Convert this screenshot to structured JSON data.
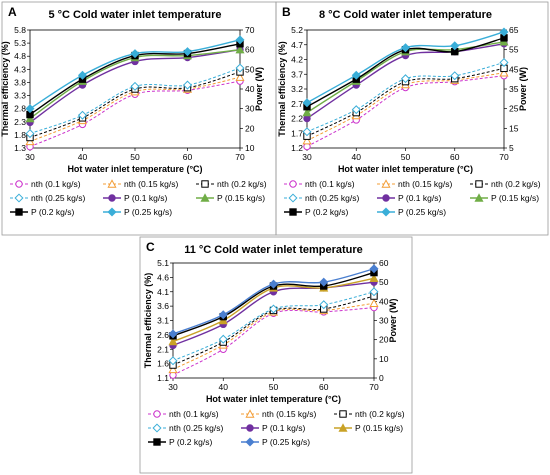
{
  "chart_data": [
    {
      "type": "line",
      "panel_label": "A",
      "title": "5 °C Cold water inlet temperature",
      "xlabel": "Hot water inlet temperature (°C)",
      "ylabel": "Thermal efficiency (%)",
      "y2label": "Power (W)",
      "x": [
        30,
        40,
        50,
        60,
        70
      ],
      "ylim": [
        1.3,
        5.8
      ],
      "yticks": [
        "1.3",
        "1.8",
        "2.3",
        "2.8",
        "3.3",
        "3.8",
        "4.3",
        "4.8",
        "5.3",
        "5.8"
      ],
      "y2lim": [
        10,
        70
      ],
      "y2ticks": [
        "10",
        "20",
        "30",
        "40",
        "50",
        "60",
        "70"
      ],
      "xticks": [
        "30",
        "40",
        "50",
        "60",
        "70"
      ],
      "grid": false,
      "legend_position": "bottom",
      "series": [
        {
          "name": "nth (0.1 kg/s)",
          "axis": "left",
          "color": "#cc33cc",
          "marker": "open-circle",
          "dash": true,
          "values": [
            1.35,
            2.2,
            3.35,
            3.5,
            3.85
          ]
        },
        {
          "name": "nth (0.15 kg/s)",
          "axis": "left",
          "color": "#f39c34",
          "marker": "open-triangle",
          "dash": true,
          "values": [
            1.55,
            2.35,
            3.45,
            3.55,
            4.0
          ]
        },
        {
          "name": "nth (0.2 kg/s)",
          "axis": "left",
          "color": "#000000",
          "marker": "open-square",
          "dash": true,
          "values": [
            1.7,
            2.45,
            3.55,
            3.6,
            4.2
          ]
        },
        {
          "name": "nth (0.25 kg/s)",
          "axis": "left",
          "color": "#3aaed8",
          "marker": "open-diamond",
          "dash": true,
          "values": [
            1.85,
            2.55,
            3.65,
            3.7,
            4.35
          ]
        },
        {
          "name": "P (0.1 kg/s)",
          "axis": "right",
          "color": "#7030a0",
          "marker": "circle",
          "dash": false,
          "values": [
            23,
            42,
            54,
            56,
            60
          ]
        },
        {
          "name": "P (0.15 kg/s)",
          "axis": "right",
          "color": "#70ad47",
          "marker": "triangle",
          "dash": false,
          "values": [
            25,
            44,
            56,
            57,
            60
          ]
        },
        {
          "name": "P (0.2 kg/s)",
          "axis": "right",
          "color": "#000000",
          "marker": "square",
          "dash": false,
          "values": [
            27,
            45,
            57,
            58,
            63
          ]
        },
        {
          "name": "P (0.25 kg/s)",
          "axis": "right",
          "color": "#3aaed8",
          "marker": "diamond",
          "dash": false,
          "values": [
            30,
            47,
            58,
            59,
            65
          ]
        }
      ]
    },
    {
      "type": "line",
      "panel_label": "B",
      "title": "8 °C Cold water inlet temperature",
      "xlabel": "Hot water inlet temperature (°C)",
      "ylabel": "Thermal efficiency (%)",
      "y2label": "Power (W)",
      "x": [
        30,
        40,
        50,
        60,
        70
      ],
      "ylim": [
        1.2,
        5.2
      ],
      "yticks": [
        "1.2",
        "1.7",
        "2.2",
        "2.7",
        "3.2",
        "3.7",
        "4.2",
        "4.7",
        "5.2"
      ],
      "y2lim": [
        5,
        65
      ],
      "y2ticks": [
        "5",
        "15",
        "25",
        "35",
        "45",
        "55",
        "65"
      ],
      "xticks": [
        "30",
        "40",
        "50",
        "60",
        "70"
      ],
      "grid": false,
      "legend_position": "bottom",
      "series": [
        {
          "name": "nth (0.1 kg/s)",
          "axis": "left",
          "color": "#cc33cc",
          "marker": "open-circle",
          "dash": true,
          "values": [
            1.25,
            2.15,
            3.25,
            3.45,
            3.65
          ]
        },
        {
          "name": "nth (0.15 kg/s)",
          "axis": "left",
          "color": "#f39c34",
          "marker": "open-triangle",
          "dash": true,
          "values": [
            1.45,
            2.3,
            3.35,
            3.5,
            3.75
          ]
        },
        {
          "name": "nth (0.2 kg/s)",
          "axis": "left",
          "color": "#000000",
          "marker": "open-square",
          "dash": true,
          "values": [
            1.6,
            2.4,
            3.45,
            3.55,
            3.9
          ]
        },
        {
          "name": "nth (0.25 kg/s)",
          "axis": "left",
          "color": "#3aaed8",
          "marker": "open-diamond",
          "dash": true,
          "values": [
            1.75,
            2.5,
            3.55,
            3.65,
            4.1
          ]
        },
        {
          "name": "P (0.1 kg/s)",
          "axis": "right",
          "color": "#7030a0",
          "marker": "circle",
          "dash": false,
          "values": [
            20,
            37,
            52,
            54,
            58
          ]
        },
        {
          "name": "P (0.15 kg/s)",
          "axis": "right",
          "color": "#70ad47",
          "marker": "triangle",
          "dash": false,
          "values": [
            23,
            39,
            54,
            55,
            59
          ]
        },
        {
          "name": "P (0.2 kg/s)",
          "axis": "right",
          "color": "#000000",
          "marker": "square",
          "dash": false,
          "values": [
            26,
            40,
            55,
            54,
            61
          ]
        },
        {
          "name": "P (0.25 kg/s)",
          "axis": "right",
          "color": "#3aaed8",
          "marker": "diamond",
          "dash": false,
          "values": [
            28,
            42,
            56,
            57,
            64
          ]
        }
      ]
    },
    {
      "type": "line",
      "panel_label": "C",
      "title": "11 °C Cold water inlet temperature",
      "xlabel": "Hot water inlet temperature (°C)",
      "ylabel": "Thermal efficiency (%)",
      "y2label": "Power (W)",
      "x": [
        30,
        40,
        50,
        60,
        70
      ],
      "ylim": [
        1.1,
        5.1
      ],
      "yticks": [
        "1.1",
        "1.6",
        "2.1",
        "2.6",
        "3.1",
        "3.6",
        "4.1",
        "4.6",
        "5.1"
      ],
      "y2lim": [
        0,
        60
      ],
      "y2ticks": [
        "0",
        "10",
        "20",
        "30",
        "40",
        "50",
        "60"
      ],
      "xticks": [
        "30",
        "40",
        "50",
        "60",
        "70"
      ],
      "grid": false,
      "legend_position": "bottom",
      "series": [
        {
          "name": "nth (0.1 kg/s)",
          "axis": "left",
          "color": "#cc33cc",
          "marker": "open-circle",
          "dash": true,
          "values": [
            1.2,
            2.1,
            3.35,
            3.4,
            3.55
          ]
        },
        {
          "name": "nth (0.15 kg/s)",
          "axis": "left",
          "color": "#f39c34",
          "marker": "open-triangle",
          "dash": true,
          "values": [
            1.4,
            2.25,
            3.4,
            3.45,
            3.7
          ]
        },
        {
          "name": "nth (0.2 kg/s)",
          "axis": "left",
          "color": "#000000",
          "marker": "open-square",
          "dash": true,
          "values": [
            1.55,
            2.35,
            3.45,
            3.5,
            3.95
          ]
        },
        {
          "name": "nth (0.25 kg/s)",
          "axis": "left",
          "color": "#3aaed8",
          "marker": "open-diamond",
          "dash": true,
          "values": [
            1.7,
            2.45,
            3.5,
            3.65,
            4.1
          ]
        },
        {
          "name": "P (0.1 kg/s)",
          "axis": "right",
          "color": "#7030a0",
          "marker": "circle",
          "dash": false,
          "values": [
            17,
            28,
            45,
            47,
            50
          ]
        },
        {
          "name": "P (0.15 kg/s)",
          "axis": "right",
          "color": "#c9a227",
          "marker": "triangle",
          "dash": false,
          "values": [
            19,
            30,
            47,
            47,
            52
          ]
        },
        {
          "name": "P (0.2 kg/s)",
          "axis": "right",
          "color": "#000000",
          "marker": "square",
          "dash": false,
          "values": [
            22,
            32,
            48,
            48,
            55
          ]
        },
        {
          "name": "P (0.25 kg/s)",
          "axis": "right",
          "color": "#4a7fd0",
          "marker": "diamond",
          "dash": false,
          "values": [
            23,
            33,
            49,
            50,
            57
          ]
        }
      ]
    }
  ]
}
